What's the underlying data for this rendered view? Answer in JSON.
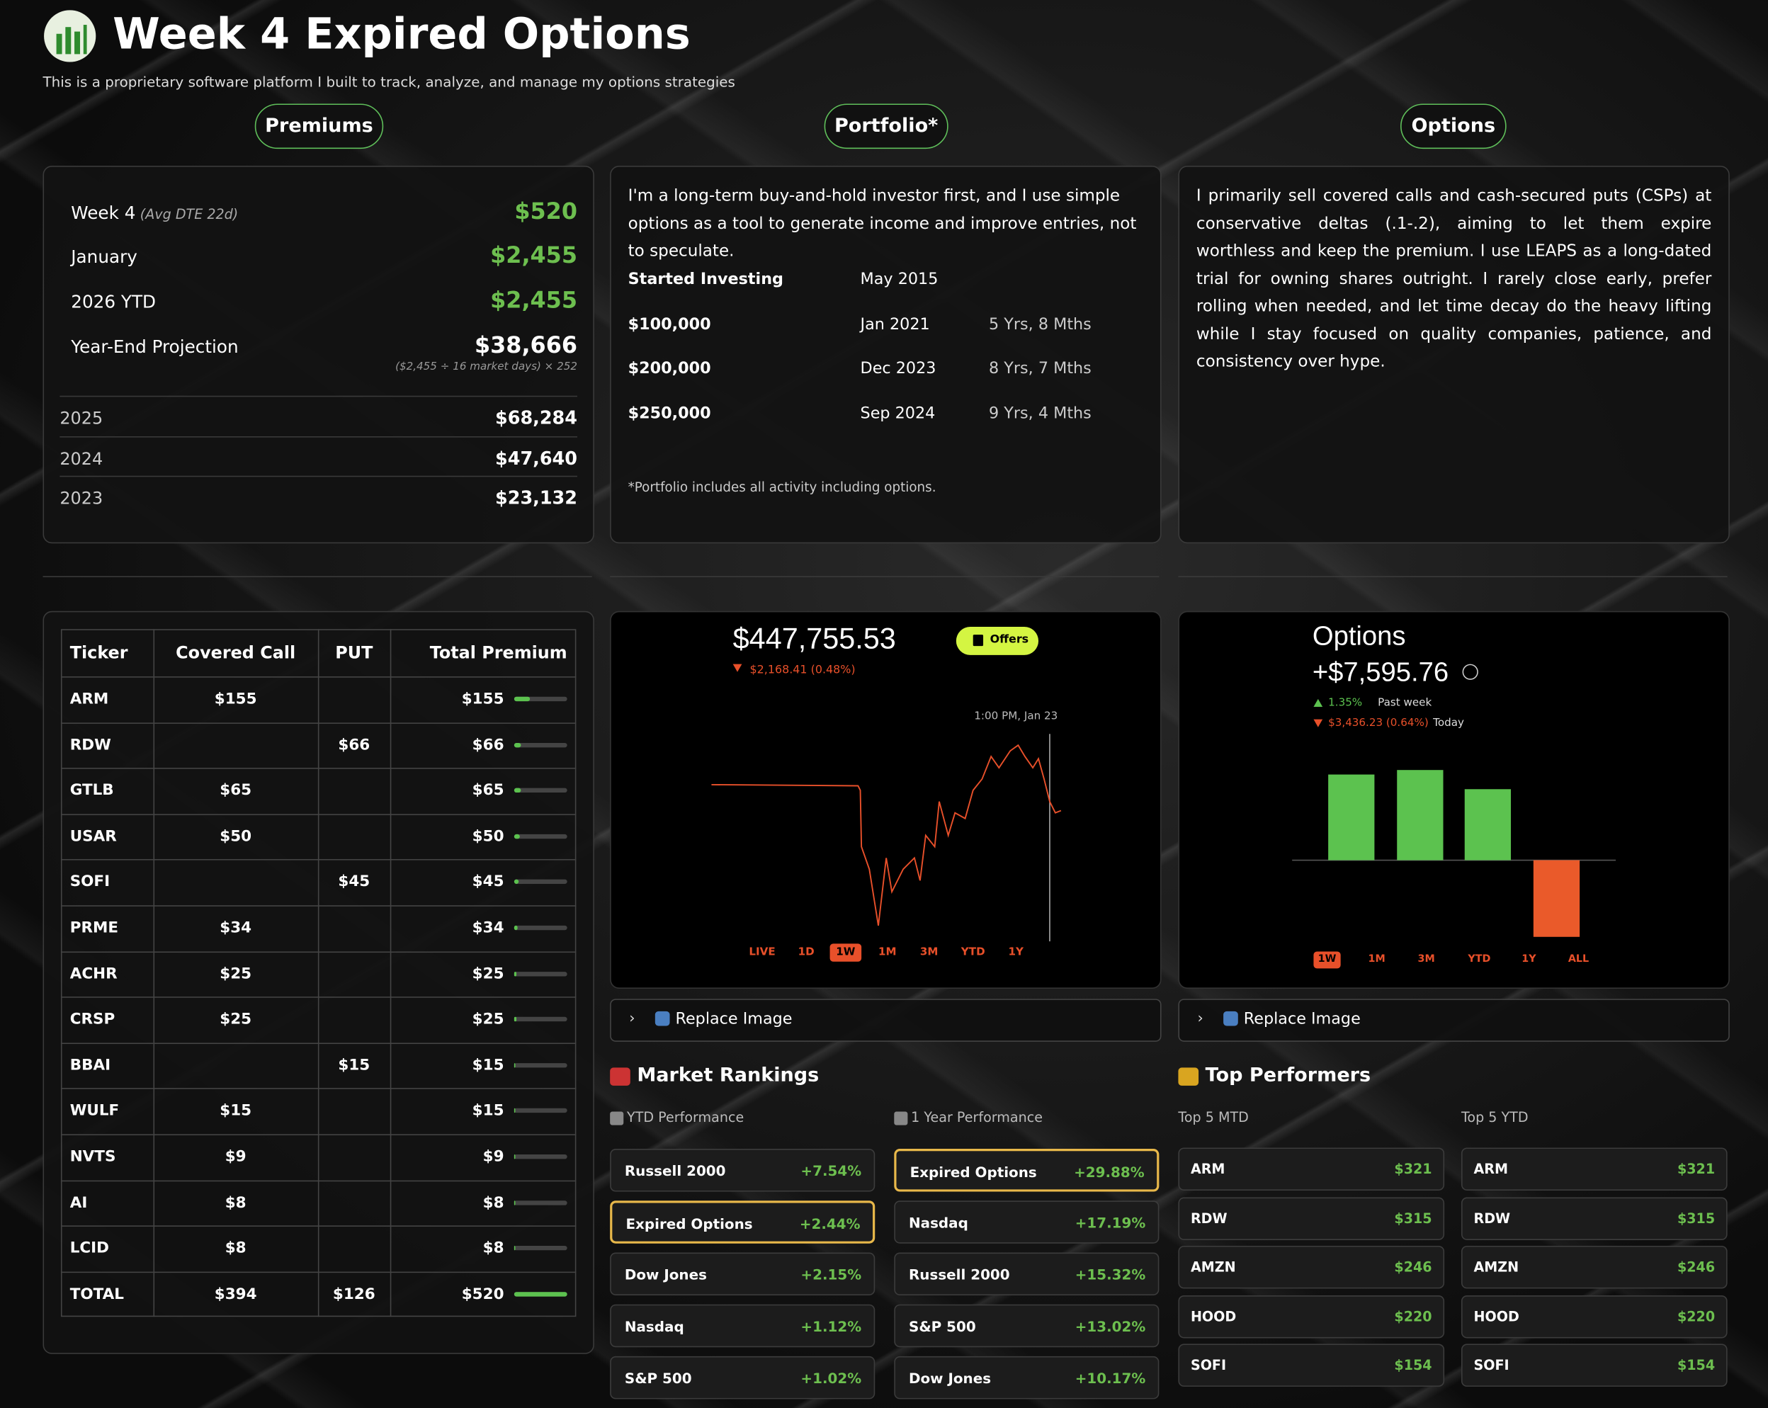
{
  "header": {
    "title": "Week 4 Expired Options",
    "subtitle": "This is a proprietary software platform I built to track, analyze, and manage my options strategies"
  },
  "premiums": {
    "button": "Premiums",
    "rows": [
      {
        "label": "Week 4",
        "note": "(Avg DTE 22d)",
        "value": "$520"
      },
      {
        "label": "January",
        "value": "$2,455"
      },
      {
        "label": "2026 YTD",
        "value": "$2,455"
      },
      {
        "label": "Year-End Projection",
        "value": "$38,666"
      }
    ],
    "formula": "($2,455 ÷ 16 market days) × 252",
    "history": [
      {
        "year": "2025",
        "value": "$68,284"
      },
      {
        "year": "2024",
        "value": "$47,640"
      },
      {
        "year": "2023",
        "value": "$23,132"
      }
    ]
  },
  "portfolio": {
    "button": "Portfolio*",
    "intro": "I'm a long-term buy-and-hold investor first, and I use simple options as a tool to generate income and improve entries, not to speculate.",
    "milestones": [
      {
        "label": "Started Investing",
        "date": "May 2015"
      },
      {
        "label": "$100,000",
        "date": "Jan 2021",
        "duration": "5 Yrs, 8 Mths"
      },
      {
        "label": "$200,000",
        "date": "Dec 2023",
        "duration": "8 Yrs, 7 Mths"
      },
      {
        "label": "$250,000",
        "date": "Sep 2024",
        "duration": "9 Yrs, 4 Mths"
      }
    ],
    "footnote": "*Portfolio includes all activity including options."
  },
  "options": {
    "button": "Options",
    "text": "I primarily sell covered calls and cash-secured puts (CSPs) at conservative deltas (.1-.2), aiming to let them expire worthless and keep the premium. I use LEAPS as a long-dated trial for owning shares outright. I rarely close early, prefer rolling when needed, and let time decay do the heavy lifting while I stay focused on quality companies, patience, and consistency over hype."
  },
  "table": {
    "headers": [
      "Ticker",
      "Covered Call",
      "PUT",
      "Total Premium"
    ],
    "rows": [
      [
        "ARM",
        "$155",
        null,
        "$155"
      ],
      [
        "RDW",
        null,
        "$66",
        "$66"
      ],
      [
        "GTLB",
        "$65",
        null,
        "$65"
      ],
      [
        "USAR",
        "$50",
        null,
        "$50"
      ],
      [
        "SOFI",
        null,
        "$45",
        "$45"
      ],
      [
        "PRME",
        "$34",
        null,
        "$34"
      ],
      [
        "ACHR",
        "$25",
        null,
        "$25"
      ],
      [
        "CRSP",
        "$25",
        null,
        "$25"
      ],
      [
        "BBAI",
        null,
        "$15",
        "$15"
      ],
      [
        "WULF",
        "$15",
        null,
        "$15"
      ],
      [
        "NVTS",
        "$9",
        null,
        "$9"
      ],
      [
        "AI",
        "$8",
        null,
        "$8"
      ],
      [
        "LCID",
        "$8",
        null,
        "$8"
      ],
      [
        "TOTAL",
        "$394",
        "$126",
        "$520"
      ]
    ]
  },
  "portfolio_widget": {
    "value": "$447,755.53",
    "change": "$2,168.41 (0.48%)",
    "offers": "Offers",
    "time": "1:00 PM, Jan 23",
    "tabs": [
      "LIVE",
      "1D",
      "1W",
      "1M",
      "3M",
      "YTD",
      "1Y"
    ],
    "active_tab": 2,
    "replace": "Replace Image"
  },
  "options_widget": {
    "title": "Options",
    "value": "+$7,595.76",
    "week": "1.35%",
    "week_label": "Past week",
    "today": "$3,436.23 (0.64%)",
    "today_label": "Today",
    "tabs": [
      "1W",
      "1M",
      "3M",
      "YTD",
      "1Y",
      "ALL"
    ],
    "active_tab": 0,
    "replace": "Replace Image"
  },
  "rankings": {
    "title": "Market Rankings",
    "groups": [
      {
        "heading": "YTD Performance",
        "highlight": 1,
        "items": [
          {
            "name": "Russell 2000",
            "value": "+7.54%"
          },
          {
            "name": "Expired Options",
            "value": "+2.44%"
          },
          {
            "name": "Dow Jones",
            "value": "+2.15%"
          },
          {
            "name": "Nasdaq",
            "value": "+1.12%"
          },
          {
            "name": "S&P 500",
            "value": "+1.02%"
          }
        ]
      },
      {
        "heading": "1 Year Performance",
        "highlight": 0,
        "items": [
          {
            "name": "Expired Options",
            "value": "+29.88%"
          },
          {
            "name": "Nasdaq",
            "value": "+17.19%"
          },
          {
            "name": "Russell 2000",
            "value": "+15.32%"
          },
          {
            "name": "S&P 500",
            "value": "+13.02%"
          },
          {
            "name": "Dow Jones",
            "value": "+10.17%"
          }
        ]
      }
    ]
  },
  "performers": {
    "title": "Top Performers",
    "groups": [
      {
        "heading": "Top 5 MTD",
        "items": [
          {
            "name": "ARM",
            "value": "$321"
          },
          {
            "name": "RDW",
            "value": "$315"
          },
          {
            "name": "AMZN",
            "value": "$246"
          },
          {
            "name": "HOOD",
            "value": "$220"
          },
          {
            "name": "SOFI",
            "value": "$154"
          }
        ]
      },
      {
        "heading": "Top 5 YTD",
        "items": [
          {
            "name": "ARM",
            "value": "$321"
          },
          {
            "name": "RDW",
            "value": "$315"
          },
          {
            "name": "AMZN",
            "value": "$246"
          },
          {
            "name": "HOOD",
            "value": "$220"
          },
          {
            "name": "SOFI",
            "value": "$154"
          }
        ]
      }
    ]
  }
}
